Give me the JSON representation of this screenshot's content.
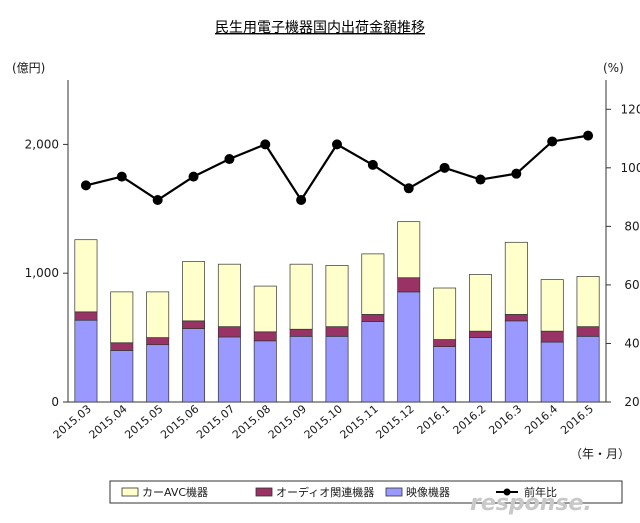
{
  "chart_data": {
    "type": "bar",
    "title": "民生用電子機器国内出荷金額推移",
    "y_unit_left": "(億円)",
    "y_unit_right": "(%)",
    "x_unit": "（年・月）",
    "categories": [
      "2015.03",
      "2015.04",
      "2015.05",
      "2015.06",
      "2015.07",
      "2015.08",
      "2015.09",
      "2015.10",
      "2015.11",
      "2015.12",
      "2016.1",
      "2016.2",
      "2016.3",
      "2016.4",
      "2016.5"
    ],
    "ylim_left": [
      0,
      2500
    ],
    "yticks_left": [
      0,
      1000,
      2000
    ],
    "ytick_labels_left": [
      "0",
      "1,000",
      "2,000"
    ],
    "ylim_right": [
      20,
      130
    ],
    "yticks_right": [
      20,
      40,
      60,
      80,
      100,
      120
    ],
    "ytick_labels_right": [
      "20",
      "40",
      "60",
      "80",
      "100",
      "120"
    ],
    "stacked": true,
    "series": [
      {
        "name": "映像機器",
        "axis": "left",
        "color": "#9999ff",
        "values": [
          635,
          400,
          445,
          570,
          505,
          475,
          510,
          510,
          625,
          855,
          430,
          500,
          630,
          465,
          510
        ]
      },
      {
        "name": "オーディオ関連機器",
        "axis": "left",
        "color": "#993366",
        "values": [
          65,
          60,
          55,
          60,
          80,
          70,
          55,
          75,
          55,
          110,
          55,
          50,
          50,
          85,
          75
        ]
      },
      {
        "name": "カーAVC機器",
        "axis": "left",
        "color": "#ffffcc",
        "values": [
          560,
          395,
          355,
          460,
          485,
          355,
          505,
          475,
          470,
          435,
          400,
          440,
          560,
          400,
          390
        ]
      },
      {
        "name": "前年比",
        "axis": "right",
        "type": "line",
        "color": "#000000",
        "values": [
          94,
          97,
          89,
          97,
          103,
          108,
          89,
          108,
          101,
          93,
          100,
          96,
          98,
          109,
          111
        ]
      }
    ],
    "legend_position": "bottom",
    "grid": false
  },
  "watermark": "response."
}
